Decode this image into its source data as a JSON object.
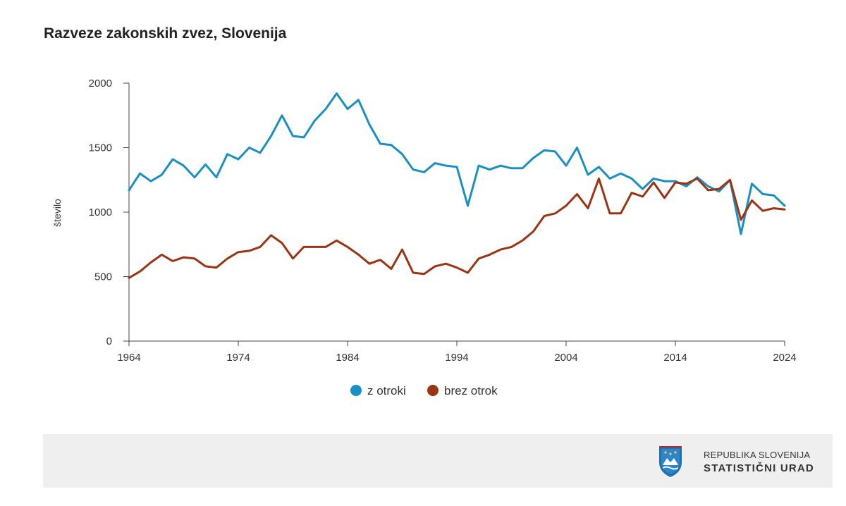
{
  "title": "Razveze zakonskih zvez, Slovenija",
  "chart_data": {
    "type": "line",
    "title": "Razveze zakonskih zvez, Slovenija",
    "xlabel": "",
    "ylabel": "število",
    "x": [
      1964,
      1965,
      1966,
      1967,
      1968,
      1969,
      1970,
      1971,
      1972,
      1973,
      1974,
      1975,
      1976,
      1977,
      1978,
      1979,
      1980,
      1981,
      1982,
      1983,
      1984,
      1985,
      1986,
      1987,
      1988,
      1989,
      1990,
      1991,
      1992,
      1993,
      1994,
      1995,
      1996,
      1997,
      1998,
      1999,
      2000,
      2001,
      2002,
      2003,
      2004,
      2005,
      2006,
      2007,
      2008,
      2009,
      2010,
      2011,
      2012,
      2013,
      2014,
      2015,
      2016,
      2017,
      2018,
      2019,
      2020,
      2021,
      2022,
      2023,
      2024
    ],
    "xticks": [
      1964,
      1974,
      1984,
      1994,
      2004,
      2014,
      2024
    ],
    "yticks": [
      0,
      500,
      1000,
      1500,
      2000
    ],
    "ylim": [
      0,
      2000
    ],
    "xlim": [
      1964,
      2024
    ],
    "grid": false,
    "legend_position": "bottom",
    "series": [
      {
        "name": "z otroki",
        "color": "#1a8fc4",
        "values": [
          1170,
          1300,
          1240,
          1290,
          1410,
          1360,
          1270,
          1370,
          1270,
          1450,
          1410,
          1500,
          1460,
          1590,
          1750,
          1590,
          1580,
          1710,
          1800,
          1920,
          1800,
          1870,
          1680,
          1530,
          1520,
          1450,
          1330,
          1310,
          1380,
          1360,
          1350,
          1050,
          1360,
          1330,
          1360,
          1340,
          1340,
          1420,
          1480,
          1470,
          1360,
          1500,
          1290,
          1350,
          1260,
          1300,
          1260,
          1180,
          1260,
          1240,
          1240,
          1200,
          1270,
          1200,
          1160,
          1250,
          830,
          1220,
          1140,
          1130,
          1050
        ]
      },
      {
        "name": "brez otrok",
        "color": "#9b3412",
        "values": [
          490,
          540,
          610,
          670,
          620,
          650,
          640,
          580,
          570,
          640,
          690,
          700,
          730,
          820,
          760,
          640,
          730,
          730,
          730,
          780,
          730,
          670,
          600,
          630,
          560,
          710,
          530,
          520,
          580,
          600,
          570,
          530,
          640,
          670,
          710,
          730,
          780,
          850,
          970,
          990,
          1050,
          1140,
          1030,
          1260,
          990,
          990,
          1150,
          1120,
          1230,
          1110,
          1230,
          1220,
          1260,
          1170,
          1180,
          1250,
          940,
          1090,
          1010,
          1030,
          1020
        ]
      }
    ]
  },
  "footer": {
    "brand_line1": "REPUBLIKA SLOVENIJA",
    "brand_line2": "STATISTIČNI URAD",
    "logo_icon": "slovenia-coat-of-arms-icon",
    "background": "#efefef"
  }
}
